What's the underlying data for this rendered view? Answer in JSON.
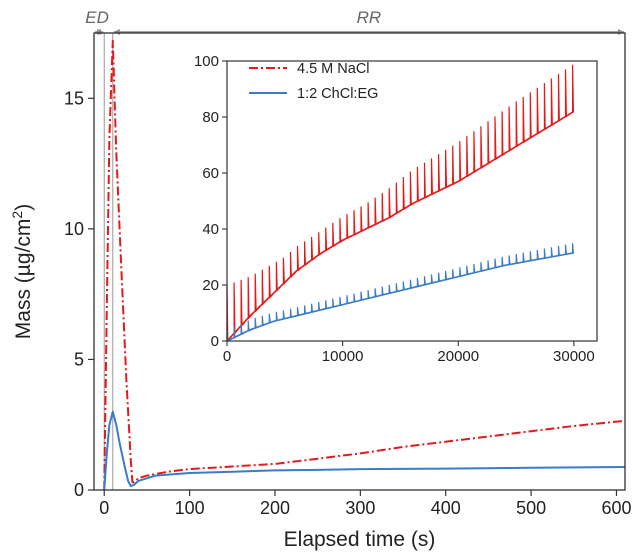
{
  "chart_data": [
    {
      "id": "main",
      "type": "line",
      "xlabel": "Elapsed time (s)",
      "ylabel": "Mass (µg/cm",
      "ylabel_sup": "2",
      "ylabel_end": ")",
      "xlim": [
        -12,
        610
      ],
      "ylim": [
        0,
        17.5
      ],
      "x_ticks": [
        0,
        100,
        200,
        300,
        400,
        500,
        600
      ],
      "x_tick_labels": [
        "0",
        "100",
        "200",
        "300",
        "400",
        "500",
        "600"
      ],
      "y_ticks": [
        0,
        5,
        10,
        15
      ],
      "y_tick_labels": [
        "0",
        "5",
        "10",
        "15"
      ],
      "grid": false,
      "regions": [
        {
          "label": "ED",
          "x_start": -12,
          "x_end": 0
        },
        {
          "label": "RR",
          "x_start": 10,
          "x_end": 610
        }
      ],
      "region_markers_x": [
        0,
        10,
        610
      ],
      "series": [
        {
          "name": "4.5 M NaCl",
          "color": "#e31a1c",
          "dash": "dashdot",
          "x": [
            0,
            3,
            6,
            10,
            14,
            20,
            26,
            31,
            33,
            35,
            40,
            50,
            75,
            100,
            150,
            200,
            250,
            300,
            350,
            400,
            450,
            500,
            550,
            610
          ],
          "y": [
            0,
            7,
            13.5,
            17.2,
            13,
            8.5,
            4.2,
            1.2,
            0.3,
            0.3,
            0.45,
            0.55,
            0.7,
            0.8,
            0.9,
            1.0,
            1.2,
            1.4,
            1.65,
            1.85,
            2.05,
            2.25,
            2.45,
            2.65
          ]
        },
        {
          "name": "1:2 ChCl:EG",
          "color": "#3a7cc7",
          "dash": "solid",
          "x": [
            0,
            3,
            6,
            10,
            14,
            18,
            24,
            28,
            31,
            35,
            40,
            60,
            100,
            150,
            200,
            250,
            300,
            400,
            500,
            610
          ],
          "y": [
            0,
            1.4,
            2.5,
            3.0,
            2.5,
            1.8,
            0.9,
            0.35,
            0.15,
            0.2,
            0.35,
            0.55,
            0.65,
            0.7,
            0.75,
            0.77,
            0.8,
            0.82,
            0.85,
            0.88
          ]
        }
      ]
    },
    {
      "id": "inset",
      "type": "line",
      "xlim": [
        0,
        32000
      ],
      "ylim": [
        0,
        100
      ],
      "x_ticks": [
        0,
        10000,
        20000,
        30000
      ],
      "x_tick_labels": [
        "0",
        "10000",
        "20000",
        "30000"
      ],
      "y_ticks": [
        0,
        20,
        40,
        60,
        80,
        100
      ],
      "y_tick_labels": [
        "0",
        "20",
        "40",
        "60",
        "80",
        "100"
      ],
      "legend_position": "top-left",
      "series": [
        {
          "name": "4.5 M NaCl",
          "color": "#e31a1c",
          "dash": "dashdot",
          "base_x": [
            0,
            2000,
            4000,
            6000,
            8000,
            10000,
            12000,
            14000,
            16000,
            18000,
            20000,
            22000,
            24000,
            26000,
            28000,
            30000
          ],
          "base_y": [
            0,
            9,
            17,
            25,
            31,
            36,
            40,
            44,
            49,
            53,
            57,
            62,
            67,
            72,
            77,
            82
          ],
          "spike_interval": 610,
          "spike_x_end": 30200,
          "spike_heights": [
            20,
            14,
            9,
            8,
            9,
            12,
            14,
            16,
            17
          ],
          "spike_heights_x": [
            0,
            2000,
            5000,
            8000,
            12000,
            16000,
            20000,
            25000,
            30200
          ]
        },
        {
          "name": "1:2 ChCl:EG",
          "color": "#3a7cc7",
          "dash": "solid",
          "base_x": [
            0,
            2000,
            4000,
            6000,
            8000,
            10000,
            12000,
            14000,
            16000,
            18000,
            20000,
            22000,
            24000,
            26000,
            28000,
            30000
          ],
          "base_y": [
            0,
            4,
            7,
            9,
            11,
            13,
            15,
            17,
            19,
            21,
            23,
            25,
            27,
            28.5,
            30,
            31.5
          ],
          "spike_interval": 610,
          "spike_x_end": 30200,
          "spike_heights": [
            4,
            3,
            3,
            3,
            3.2,
            3.5
          ],
          "spike_heights_x": [
            0,
            5000,
            10000,
            15000,
            22000,
            30200
          ]
        }
      ]
    }
  ]
}
